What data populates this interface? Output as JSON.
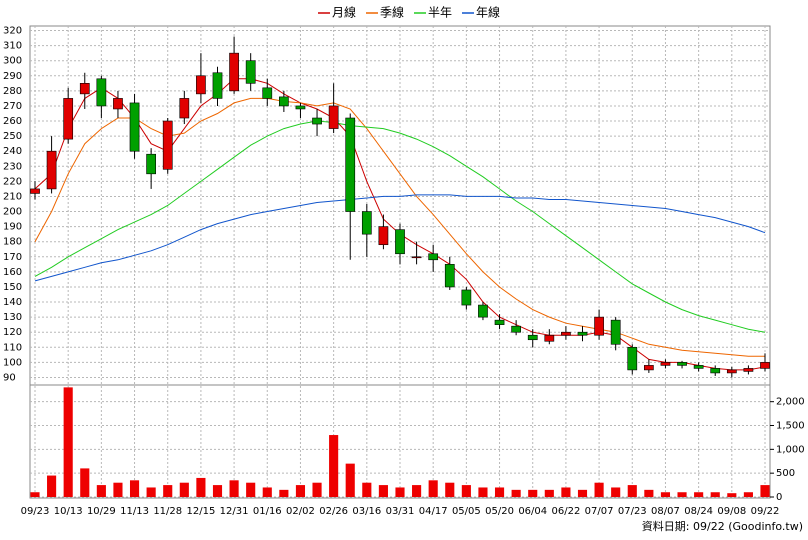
{
  "chart_data": {
    "type": "candlestick",
    "categories": [
      "09/23",
      null,
      "10/13",
      null,
      "10/29",
      null,
      "11/13",
      null,
      "11/28",
      null,
      "12/15",
      null,
      "12/31",
      null,
      "01/16",
      null,
      "02/02",
      null,
      "02/26",
      null,
      "03/16",
      null,
      "03/31",
      null,
      "04/17",
      null,
      "05/05",
      null,
      "05/20",
      null,
      "06/04",
      null,
      "06/22",
      null,
      "07/07",
      null,
      "07/23",
      null,
      "08/07",
      null,
      "08/24",
      null,
      "09/08",
      null,
      "09/22"
    ],
    "open": [
      212,
      215,
      248,
      278,
      288,
      268,
      272,
      238,
      228,
      262,
      278,
      292,
      280,
      300,
      282,
      276,
      270,
      262,
      255,
      262,
      200,
      178,
      188,
      170,
      172,
      165,
      148,
      138,
      128,
      124,
      118,
      114,
      118,
      120,
      118,
      128,
      110,
      95,
      98,
      100,
      98,
      96,
      93,
      94,
      96
    ],
    "high": [
      220,
      250,
      282,
      292,
      290,
      280,
      278,
      242,
      262,
      280,
      305,
      296,
      316,
      305,
      288,
      280,
      272,
      268,
      285,
      265,
      205,
      198,
      192,
      180,
      178,
      170,
      150,
      140,
      132,
      128,
      122,
      122,
      124,
      124,
      135,
      130,
      112,
      102,
      102,
      101,
      100,
      98,
      97,
      98,
      106
    ],
    "low": [
      208,
      212,
      245,
      268,
      262,
      262,
      235,
      215,
      225,
      258,
      272,
      270,
      278,
      280,
      270,
      266,
      262,
      250,
      252,
      168,
      170,
      175,
      165,
      165,
      160,
      148,
      135,
      128,
      122,
      118,
      110,
      112,
      115,
      114,
      115,
      108,
      92,
      93,
      96,
      96,
      94,
      91,
      90,
      92,
      94
    ],
    "close": [
      215,
      240,
      275,
      285,
      270,
      275,
      240,
      225,
      260,
      275,
      290,
      275,
      305,
      285,
      275,
      270,
      268,
      258,
      270,
      200,
      185,
      190,
      172,
      170,
      168,
      150,
      138,
      130,
      125,
      120,
      115,
      118,
      120,
      118,
      130,
      112,
      95,
      98,
      100,
      98,
      96,
      93,
      95,
      96,
      100
    ],
    "up_color": "#e00000",
    "down_color": "#00a000",
    "ylim": [
      85,
      323
    ],
    "yticks": [
      90,
      100,
      110,
      120,
      130,
      140,
      150,
      160,
      170,
      180,
      190,
      200,
      210,
      220,
      230,
      240,
      250,
      260,
      270,
      280,
      290,
      300,
      310,
      320
    ],
    "grid": true,
    "legend": "top",
    "series": [
      {
        "name": "月線",
        "color": "#cc0000",
        "values": [
          215,
          225,
          255,
          275,
          282,
          275,
          262,
          245,
          240,
          255,
          270,
          278,
          288,
          288,
          285,
          278,
          272,
          268,
          262,
          250,
          220,
          195,
          185,
          178,
          172,
          165,
          155,
          140,
          130,
          125,
          120,
          118,
          118,
          118,
          120,
          118,
          110,
          102,
          100,
          100,
          98,
          96,
          95,
          95,
          97
        ]
      },
      {
        "name": "季線",
        "color": "#ee6600",
        "values": [
          180,
          200,
          225,
          245,
          255,
          262,
          262,
          255,
          250,
          252,
          260,
          265,
          272,
          275,
          275,
          273,
          272,
          270,
          272,
          268,
          255,
          240,
          225,
          210,
          198,
          185,
          172,
          160,
          150,
          142,
          135,
          130,
          126,
          124,
          122,
          120,
          116,
          112,
          110,
          108,
          107,
          106,
          105,
          104,
          104
        ]
      },
      {
        "name": "半年",
        "color": "#22cc22",
        "values": [
          157,
          163,
          170,
          176,
          182,
          188,
          193,
          198,
          204,
          212,
          220,
          228,
          236,
          244,
          250,
          255,
          258,
          260,
          259,
          257,
          256,
          255,
          252,
          248,
          243,
          237,
          230,
          223,
          215,
          207,
          200,
          192,
          184,
          176,
          168,
          160,
          152,
          146,
          140,
          135,
          131,
          128,
          125,
          122,
          120
        ]
      },
      {
        "name": "年線",
        "color": "#1155cc",
        "values": [
          154,
          157,
          160,
          163,
          166,
          168,
          171,
          174,
          178,
          183,
          188,
          192,
          195,
          198,
          200,
          202,
          204,
          206,
          207,
          208,
          209,
          210,
          210,
          211,
          211,
          211,
          210,
          210,
          210,
          209,
          209,
          208,
          208,
          207,
          206,
          205,
          204,
          203,
          202,
          200,
          198,
          196,
          193,
          190,
          186
        ]
      }
    ],
    "volume": {
      "color": "#ee0000",
      "values": [
        100,
        450,
        2300,
        600,
        250,
        300,
        350,
        200,
        250,
        300,
        400,
        250,
        350,
        300,
        200,
        150,
        250,
        300,
        1300,
        700,
        300,
        250,
        200,
        250,
        350,
        300,
        250,
        200,
        200,
        150,
        150,
        150,
        200,
        150,
        300,
        200,
        250,
        150,
        100,
        100,
        100,
        100,
        80,
        100,
        250
      ],
      "ylim": [
        0,
        2350
      ],
      "yticks": [
        0,
        500,
        {
          "value": 1000,
          "label": "1,000"
        },
        {
          "value": 1500,
          "label": "1,500"
        },
        {
          "value": 2000,
          "label": "2,000"
        }
      ]
    },
    "footnote": "資料日期: 09/22 (Goodinfo.tw)"
  }
}
